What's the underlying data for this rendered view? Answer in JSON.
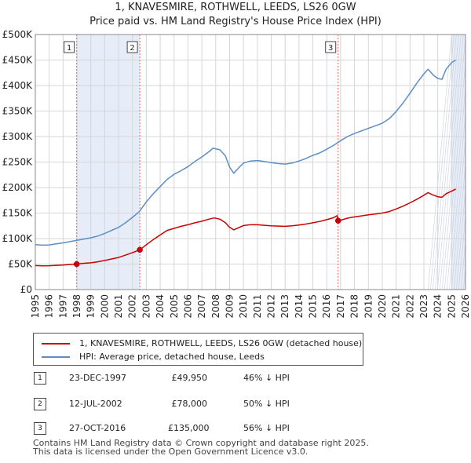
{
  "title": "1, KNAVESMIRE, ROTHWELL, LEEDS, LS26 0GW",
  "subtitle": "Price paid vs. HM Land Registry's House Price Index (HPI)",
  "chart_data": {
    "type": "line",
    "title": "1, KNAVESMIRE, ROTHWELL, LEEDS, LS26 0GW",
    "subtitle": "Price paid vs. HM Land Registry's House Price Index (HPI)",
    "xlabel": "",
    "ylabel": "",
    "xlim": [
      1995,
      2026
    ],
    "ylim": [
      0,
      500000
    ],
    "grid": true,
    "x_ticks": [
      "1995",
      "1996",
      "1997",
      "1998",
      "1999",
      "2000",
      "2001",
      "2002",
      "2003",
      "2004",
      "2005",
      "2006",
      "2007",
      "2008",
      "2009",
      "2010",
      "2011",
      "2012",
      "2013",
      "2014",
      "2015",
      "2016",
      "2017",
      "2018",
      "2019",
      "2020",
      "2021",
      "2022",
      "2023",
      "2024",
      "2025",
      "2026"
    ],
    "y_ticks": [
      {
        "value": 0,
        "label": "£0"
      },
      {
        "value": 50000,
        "label": "£50K"
      },
      {
        "value": 100000,
        "label": "£100K"
      },
      {
        "value": 150000,
        "label": "£150K"
      },
      {
        "value": 200000,
        "label": "£200K"
      },
      {
        "value": 250000,
        "label": "£250K"
      },
      {
        "value": 300000,
        "label": "£300K"
      },
      {
        "value": 350000,
        "label": "£350K"
      },
      {
        "value": 400000,
        "label": "£400K"
      },
      {
        "value": 450000,
        "label": "£450K"
      },
      {
        "value": 500000,
        "label": "£500K"
      }
    ],
    "shaded_periods": [
      [
        1997.98,
        2002.53
      ],
      [
        2025.0,
        2026.0
      ]
    ],
    "series": [
      {
        "name": "1, KNAVESMIRE, ROTHWELL, LEEDS, LS26 0GW (detached house)",
        "color": "#cc0000",
        "points": [
          [
            1995.0,
            47000
          ],
          [
            1995.5,
            46500
          ],
          [
            1996.0,
            46800
          ],
          [
            1996.5,
            47500
          ],
          [
            1997.0,
            48200
          ],
          [
            1997.5,
            49200
          ],
          [
            1997.98,
            49950
          ],
          [
            1998.5,
            51500
          ],
          [
            1999.0,
            52500
          ],
          [
            1999.5,
            54500
          ],
          [
            2000.0,
            57000
          ],
          [
            2000.5,
            60000
          ],
          [
            2001.0,
            63000
          ],
          [
            2001.5,
            67500
          ],
          [
            2002.0,
            72500
          ],
          [
            2002.53,
            78000
          ],
          [
            2003.0,
            88000
          ],
          [
            2003.5,
            98000
          ],
          [
            2004.0,
            107000
          ],
          [
            2004.5,
            116000
          ],
          [
            2005.0,
            120000
          ],
          [
            2005.5,
            124000
          ],
          [
            2006.0,
            127000
          ],
          [
            2006.5,
            131000
          ],
          [
            2007.0,
            134000
          ],
          [
            2007.5,
            138000
          ],
          [
            2007.9,
            140500
          ],
          [
            2008.3,
            138000
          ],
          [
            2008.7,
            131000
          ],
          [
            2009.0,
            122000
          ],
          [
            2009.3,
            117000
          ],
          [
            2009.7,
            122000
          ],
          [
            2010.0,
            125500
          ],
          [
            2010.5,
            127000
          ],
          [
            2011.0,
            127000
          ],
          [
            2011.5,
            126000
          ],
          [
            2012.0,
            125000
          ],
          [
            2012.5,
            124500
          ],
          [
            2013.0,
            124000
          ],
          [
            2013.5,
            125000
          ],
          [
            2014.0,
            126500
          ],
          [
            2014.5,
            128500
          ],
          [
            2015.0,
            131000
          ],
          [
            2015.5,
            133500
          ],
          [
            2016.0,
            137000
          ],
          [
            2016.5,
            141000
          ],
          [
            2016.75,
            145000
          ],
          [
            2016.82,
            135000
          ],
          [
            2017.0,
            136000
          ],
          [
            2017.5,
            140000
          ],
          [
            2018.0,
            142500
          ],
          [
            2018.5,
            144500
          ],
          [
            2019.0,
            146500
          ],
          [
            2019.5,
            148000
          ],
          [
            2020.0,
            150000
          ],
          [
            2020.5,
            153000
          ],
          [
            2021.0,
            158000
          ],
          [
            2021.5,
            163500
          ],
          [
            2022.0,
            170000
          ],
          [
            2022.5,
            177000
          ],
          [
            2023.0,
            185000
          ],
          [
            2023.3,
            190000
          ],
          [
            2023.6,
            186000
          ],
          [
            2024.0,
            182000
          ],
          [
            2024.3,
            181000
          ],
          [
            2024.6,
            188000
          ],
          [
            2025.0,
            193000
          ],
          [
            2025.3,
            197000
          ]
        ]
      },
      {
        "name": "HPI: Average price, detached house, Leeds",
        "color": "#5b8ec4",
        "points": [
          [
            1995.0,
            88000
          ],
          [
            1995.5,
            87000
          ],
          [
            1996.0,
            87500
          ],
          [
            1996.5,
            89500
          ],
          [
            1997.0,
            91500
          ],
          [
            1997.5,
            94000
          ],
          [
            1998.0,
            96500
          ],
          [
            1998.5,
            99000
          ],
          [
            1999.0,
            101500
          ],
          [
            1999.5,
            105000
          ],
          [
            2000.0,
            110000
          ],
          [
            2000.5,
            116000
          ],
          [
            2001.0,
            122000
          ],
          [
            2001.5,
            131000
          ],
          [
            2002.0,
            141500
          ],
          [
            2002.5,
            153000
          ],
          [
            2003.0,
            172000
          ],
          [
            2003.5,
            188000
          ],
          [
            2004.0,
            202000
          ],
          [
            2004.5,
            216000
          ],
          [
            2005.0,
            226000
          ],
          [
            2005.5,
            233000
          ],
          [
            2006.0,
            241000
          ],
          [
            2006.5,
            251000
          ],
          [
            2007.0,
            260000
          ],
          [
            2007.5,
            270000
          ],
          [
            2007.8,
            277000
          ],
          [
            2008.3,
            274000
          ],
          [
            2008.7,
            262000
          ],
          [
            2009.0,
            240000
          ],
          [
            2009.3,
            228000
          ],
          [
            2009.7,
            240000
          ],
          [
            2010.0,
            248000
          ],
          [
            2010.5,
            252000
          ],
          [
            2011.0,
            253000
          ],
          [
            2011.5,
            251000
          ],
          [
            2012.0,
            249000
          ],
          [
            2012.5,
            247000
          ],
          [
            2013.0,
            246000
          ],
          [
            2013.5,
            248000
          ],
          [
            2014.0,
            252000
          ],
          [
            2014.5,
            257000
          ],
          [
            2015.0,
            263000
          ],
          [
            2015.5,
            268000
          ],
          [
            2016.0,
            275000
          ],
          [
            2016.5,
            283000
          ],
          [
            2017.0,
            292000
          ],
          [
            2017.5,
            300000
          ],
          [
            2018.0,
            306000
          ],
          [
            2018.5,
            311000
          ],
          [
            2019.0,
            316000
          ],
          [
            2019.5,
            321000
          ],
          [
            2020.0,
            326000
          ],
          [
            2020.5,
            335000
          ],
          [
            2021.0,
            349000
          ],
          [
            2021.5,
            366000
          ],
          [
            2022.0,
            385000
          ],
          [
            2022.5,
            405000
          ],
          [
            2023.0,
            423000
          ],
          [
            2023.3,
            432000
          ],
          [
            2023.7,
            420000
          ],
          [
            2024.0,
            414000
          ],
          [
            2024.3,
            412000
          ],
          [
            2024.6,
            432000
          ],
          [
            2025.0,
            445000
          ],
          [
            2025.3,
            450000
          ]
        ]
      }
    ],
    "sale_markers": [
      {
        "label": "1",
        "x": 1997.98,
        "y": 49950
      },
      {
        "label": "2",
        "x": 2002.53,
        "y": 78000
      },
      {
        "label": "3",
        "x": 2016.82,
        "y": 135000
      }
    ]
  },
  "legend": {
    "items": [
      {
        "label": "1, KNAVESMIRE, ROTHWELL, LEEDS, LS26 0GW (detached house)",
        "color": "#cc0000"
      },
      {
        "label": "HPI: Average price, detached house, Leeds",
        "color": "#5b8ec4"
      }
    ]
  },
  "sales": [
    {
      "num": "1",
      "date": "23-DEC-1997",
      "price": "£49,950",
      "hpi": "46% ↓ HPI"
    },
    {
      "num": "2",
      "date": "12-JUL-2002",
      "price": "£78,000",
      "hpi": "50% ↓ HPI"
    },
    {
      "num": "3",
      "date": "27-OCT-2016",
      "price": "£135,000",
      "hpi": "56% ↓ HPI"
    }
  ],
  "footer": {
    "line1": "Contains HM Land Registry data © Crown copyright and database right 2025.",
    "line2": "This data is licensed under the Open Government Licence v3.0."
  }
}
